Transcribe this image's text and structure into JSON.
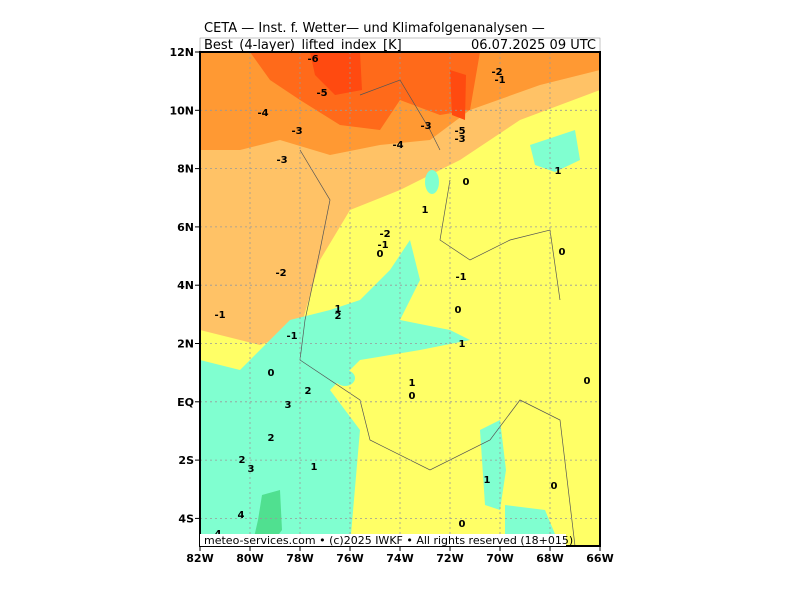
{
  "header": {
    "line1": "CETA — Inst. f. Wetter— und Klimafolgenanalysen —",
    "variable": "Best_(4-layer)_lifted_index_[K]",
    "datetime": "06.07.2025 09 UTC"
  },
  "axes": {
    "x_labels": [
      "82W",
      "80W",
      "78W",
      "76W",
      "74W",
      "72W",
      "70W",
      "68W",
      "66W"
    ],
    "y_labels": [
      "12N",
      "10N",
      "8N",
      "6N",
      "4N",
      "2N",
      "EQ",
      "2S",
      "4S"
    ]
  },
  "contour_labels": [
    "-6",
    "-5",
    "-2",
    "-1",
    "-4",
    "-3",
    "-3",
    "-5",
    "-3",
    "-4",
    "-3",
    "0",
    "1",
    "1",
    "-2",
    "-1",
    "0",
    "0",
    "-2",
    "-1",
    "-1",
    "1",
    "2",
    "0",
    "-1",
    "1",
    "0",
    "0",
    "2",
    "1",
    "0",
    "3",
    "2",
    "1",
    "2",
    "3",
    "1",
    "0",
    "4",
    "0",
    "4"
  ],
  "footer": "meteo-services.com • (c)2025 IWKF • All rights reserved (18+015)"
}
